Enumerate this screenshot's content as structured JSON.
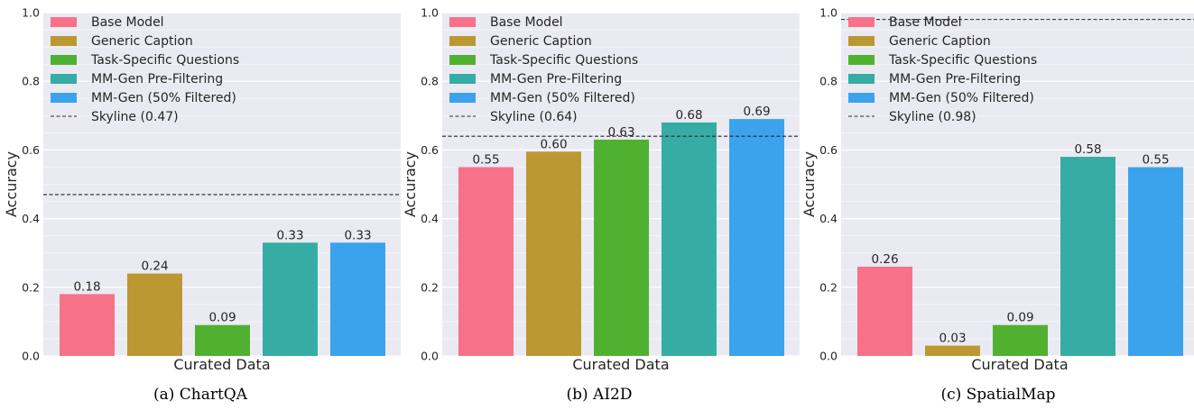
{
  "chart_data": [
    {
      "type": "bar",
      "caption": "(a) ChartQA",
      "xlabel": "Curated Data",
      "ylabel": "Accuracy",
      "ylim": [
        0,
        1.0
      ],
      "yticks": [
        "0.0",
        "0.2",
        "0.4",
        "0.6",
        "0.8",
        "1.0"
      ],
      "grid": true,
      "legend_position": "top-left",
      "series": [
        {
          "name": "Base Model",
          "value": 0.18,
          "label": "0.18",
          "color": "#f77189"
        },
        {
          "name": "Generic Caption",
          "value": 0.24,
          "label": "0.24",
          "color": "#bb9832"
        },
        {
          "name": "Task-Specific Questions",
          "value": 0.09,
          "label": "0.09",
          "color": "#50b131"
        },
        {
          "name": "MM-Gen Pre-Filtering",
          "value": 0.33,
          "label": "0.33",
          "color": "#36ada4"
        },
        {
          "name": "MM-Gen (50% Filtered)",
          "value": 0.33,
          "label": "0.33",
          "color": "#3ba3ec"
        }
      ],
      "skyline": {
        "name": "Skyline (0.47)",
        "value": 0.47
      }
    },
    {
      "type": "bar",
      "caption": "(b) AI2D",
      "xlabel": "Curated Data",
      "ylabel": "Accuracy",
      "ylim": [
        0,
        1.0
      ],
      "yticks": [
        "0.0",
        "0.2",
        "0.4",
        "0.6",
        "0.8",
        "1.0"
      ],
      "grid": true,
      "legend_position": "top-left",
      "series": [
        {
          "name": "Base Model",
          "value": 0.55,
          "label": "0.55",
          "color": "#f77189"
        },
        {
          "name": "Generic Caption",
          "value": 0.595,
          "label": "0.60",
          "color": "#bb9832"
        },
        {
          "name": "Task-Specific Questions",
          "value": 0.63,
          "label": "0.63",
          "color": "#50b131"
        },
        {
          "name": "MM-Gen Pre-Filtering",
          "value": 0.68,
          "label": "0.68",
          "color": "#36ada4"
        },
        {
          "name": "MM-Gen (50% Filtered)",
          "value": 0.69,
          "label": "0.69",
          "color": "#3ba3ec"
        }
      ],
      "skyline": {
        "name": "Skyline (0.64)",
        "value": 0.64
      }
    },
    {
      "type": "bar",
      "caption": "(c) SpatialMap",
      "xlabel": "Curated Data",
      "ylabel": "Accuracy",
      "ylim": [
        0,
        1.0
      ],
      "yticks": [
        "0.0",
        "0.2",
        "0.4",
        "0.6",
        "0.8",
        "1.0"
      ],
      "grid": true,
      "legend_position": "top-left",
      "series": [
        {
          "name": "Base Model",
          "value": 0.26,
          "label": "0.26",
          "color": "#f77189"
        },
        {
          "name": "Generic Caption",
          "value": 0.03,
          "label": "0.03",
          "color": "#bb9832"
        },
        {
          "name": "Task-Specific Questions",
          "value": 0.09,
          "label": "0.09",
          "color": "#50b131"
        },
        {
          "name": "MM-Gen Pre-Filtering",
          "value": 0.58,
          "label": "0.58",
          "color": "#36ada4"
        },
        {
          "name": "MM-Gen (50% Filtered)",
          "value": 0.55,
          "label": "0.55",
          "color": "#3ba3ec"
        }
      ],
      "skyline": {
        "name": "Skyline (0.98)",
        "value": 0.98
      }
    }
  ],
  "style": {
    "plot_background": "#eaeaf2",
    "grid_color": "#ffffff",
    "skyline_color": "#262626"
  }
}
